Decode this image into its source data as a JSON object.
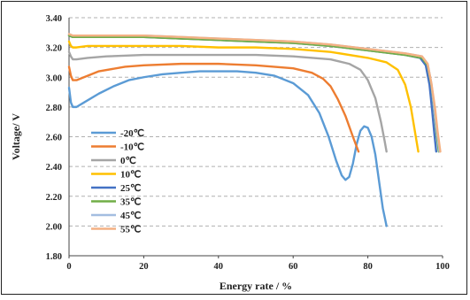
{
  "chart_data": {
    "type": "line",
    "title": "",
    "xlabel": "Energy rate / %",
    "ylabel": "Voltage/ V",
    "xlim": [
      0,
      100
    ],
    "ylim": [
      1.8,
      3.4
    ],
    "x_ticks": [
      "0",
      "20",
      "40",
      "60",
      "80",
      "100"
    ],
    "y_ticks": [
      "1.80",
      "2.00",
      "2.20",
      "2.40",
      "2.60",
      "2.80",
      "3.00",
      "3.20",
      "3.40"
    ],
    "grid": "horizontal dashed",
    "legend_position": "left-middle",
    "series": [
      {
        "name": "-20℃",
        "color": "#5B9BD5",
        "x": [
          0,
          0.5,
          1,
          2,
          4,
          8,
          12,
          16,
          20,
          25,
          30,
          35,
          40,
          45,
          50,
          55,
          60,
          64,
          67,
          69.5,
          71.5,
          73,
          74,
          75,
          76,
          77,
          78,
          79,
          80,
          81,
          82,
          83,
          84,
          85
        ],
        "y": [
          2.93,
          2.83,
          2.8,
          2.8,
          2.83,
          2.89,
          2.94,
          2.98,
          3.0,
          3.02,
          3.03,
          3.04,
          3.04,
          3.04,
          3.03,
          3.01,
          2.96,
          2.88,
          2.76,
          2.6,
          2.44,
          2.34,
          2.31,
          2.33,
          2.42,
          2.55,
          2.64,
          2.67,
          2.66,
          2.6,
          2.48,
          2.3,
          2.12,
          2.0
        ]
      },
      {
        "name": "-10℃",
        "color": "#ED7D31",
        "x": [
          0,
          0.5,
          1,
          2,
          4,
          8,
          15,
          20,
          30,
          40,
          50,
          60,
          65,
          68,
          70,
          72,
          74,
          76,
          77.5
        ],
        "y": [
          3.07,
          3.01,
          2.98,
          2.98,
          3.0,
          3.04,
          3.07,
          3.08,
          3.09,
          3.09,
          3.08,
          3.06,
          3.03,
          2.99,
          2.94,
          2.85,
          2.74,
          2.6,
          2.5
        ]
      },
      {
        "name": "0℃",
        "color": "#A5A5A5",
        "x": [
          0,
          0.5,
          1,
          2,
          5,
          10,
          20,
          30,
          40,
          50,
          60,
          70,
          75,
          78,
          80,
          82,
          83.5,
          84.5,
          85
        ],
        "y": [
          3.17,
          3.14,
          3.12,
          3.12,
          3.13,
          3.14,
          3.15,
          3.15,
          3.15,
          3.15,
          3.14,
          3.12,
          3.09,
          3.05,
          2.98,
          2.86,
          2.7,
          2.57,
          2.5
        ]
      },
      {
        "name": "10℃",
        "color": "#FFC000",
        "x": [
          0,
          0.5,
          1,
          2,
          5,
          10,
          20,
          30,
          40,
          50,
          60,
          70,
          80,
          85,
          88,
          90,
          91.5,
          92.5,
          93.5
        ],
        "y": [
          3.24,
          3.21,
          3.2,
          3.2,
          3.21,
          3.21,
          3.21,
          3.21,
          3.2,
          3.2,
          3.19,
          3.17,
          3.13,
          3.1,
          3.05,
          2.95,
          2.8,
          2.65,
          2.5
        ]
      },
      {
        "name": "25℃",
        "color": "#4472C4",
        "x": [
          0,
          1,
          2,
          5,
          10,
          20,
          30,
          40,
          50,
          60,
          70,
          80,
          90,
          94,
          95.5,
          96.5,
          97.2,
          97.8,
          98.3
        ],
        "y": [
          3.28,
          3.27,
          3.27,
          3.27,
          3.27,
          3.27,
          3.26,
          3.25,
          3.24,
          3.23,
          3.21,
          3.18,
          3.15,
          3.13,
          3.08,
          2.95,
          2.78,
          2.62,
          2.5
        ]
      },
      {
        "name": "35℃",
        "color": "#70AD47",
        "x": [
          0,
          1,
          2,
          5,
          10,
          20,
          30,
          40,
          50,
          60,
          70,
          80,
          90,
          94.5,
          96,
          97,
          97.8,
          98.4,
          99
        ],
        "y": [
          3.28,
          3.27,
          3.27,
          3.27,
          3.27,
          3.27,
          3.26,
          3.25,
          3.24,
          3.23,
          3.21,
          3.18,
          3.15,
          3.13,
          3.08,
          2.95,
          2.78,
          2.62,
          2.5
        ]
      },
      {
        "name": "45℃",
        "color": "#A3BDE0",
        "x": [
          0,
          1,
          2,
          5,
          10,
          20,
          30,
          40,
          50,
          60,
          70,
          80,
          90,
          94.5,
          96,
          97,
          97.8,
          98.5,
          99.2
        ],
        "y": [
          3.29,
          3.28,
          3.28,
          3.28,
          3.28,
          3.28,
          3.27,
          3.26,
          3.25,
          3.24,
          3.22,
          3.19,
          3.16,
          3.14,
          3.09,
          2.96,
          2.79,
          2.63,
          2.5
        ]
      },
      {
        "name": "55℃",
        "color": "#F4B183",
        "x": [
          0,
          1,
          2,
          5,
          10,
          20,
          30,
          40,
          50,
          60,
          70,
          80,
          90,
          94.5,
          96,
          97,
          98,
          98.7,
          99.4
        ],
        "y": [
          3.29,
          3.28,
          3.28,
          3.28,
          3.28,
          3.28,
          3.27,
          3.26,
          3.25,
          3.24,
          3.22,
          3.19,
          3.16,
          3.14,
          3.09,
          2.96,
          2.79,
          2.63,
          2.5
        ]
      }
    ]
  }
}
